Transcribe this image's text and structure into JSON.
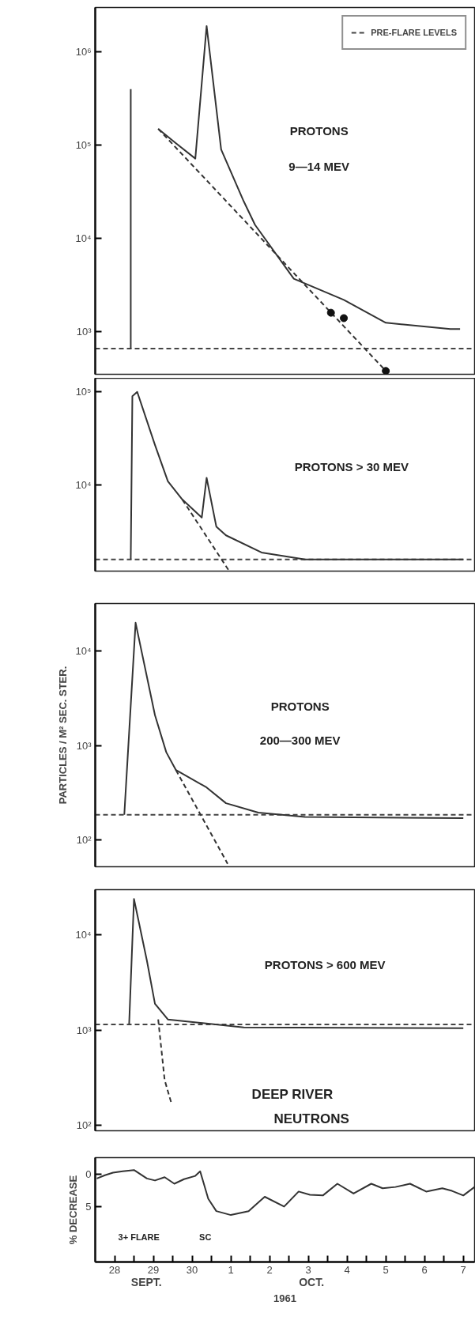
{
  "chart_data": [
    {
      "type": "line",
      "annotations": [
        "PROTONS",
        "9—14 MEV"
      ],
      "xlim": [
        "1961-09-28T00:00",
        "1961-10-07T19:00"
      ],
      "ylim": [
        350,
        3000000
      ],
      "log": true,
      "tick_labels": "y",
      "legend": "top right",
      "yticks": [
        {
          "value": 1000,
          "label": "10³"
        },
        {
          "value": 10000,
          "label": "10⁴"
        },
        {
          "value": 100000,
          "label": "10⁵"
        },
        {
          "value": 1000000,
          "label": "10⁶"
        }
      ],
      "ref_lines": [
        {
          "axis": "y",
          "value": 660,
          "label": "PRE-FLARE LEVELS",
          "line_style": "dashed",
          "color": "#444444"
        }
      ],
      "series": [
        {
          "color": "#333333",
          "line_style": "solid",
          "x": [
            "1961-09-28T22:00",
            "1961-09-28T22:00",
            "1961-09-29T07:00",
            "1961-09-29T15:00",
            "1961-09-30T02:00",
            "1961-09-30T14:00",
            "1961-09-30T21:00",
            "1961-10-01T06:00",
            "1961-10-01T20:00",
            "1961-10-02T03:00",
            "1961-10-03T03:00",
            "1961-10-04T10:00",
            "1961-10-05T12:00",
            "1961-10-07T04:00",
            "1961-10-07T10:00"
          ],
          "values": [
            660,
            400000,
            null,
            150000,
            105000,
            72000,
            1900000,
            90000,
            25000,
            14000,
            3700,
            2200,
            1250,
            1070,
            1070
          ]
        },
        {
          "color": "#333333",
          "line_style": "dashed",
          "x": [
            "1961-09-29T15:00",
            "1961-10-05T12:00"
          ],
          "values": [
            150000,
            380
          ]
        },
        {
          "type": "scatter",
          "color": "#111111",
          "marker": "circle",
          "x": [
            "1961-10-04T02:00",
            "1961-10-04T10:00",
            "1961-10-05T12:00"
          ],
          "values": [
            1600,
            1400,
            380
          ]
        }
      ]
    },
    {
      "type": "line",
      "annotations": [
        "PROTONS  > 30 MEV"
      ],
      "xlim": [
        "1961-09-28T00:00",
        "1961-10-07T19:00"
      ],
      "ylim": [
        1200,
        140000
      ],
      "log": true,
      "tick_labels": "y",
      "yticks": [
        {
          "value": 10000,
          "label": "10⁴"
        },
        {
          "value": 100000,
          "label": "10⁵"
        }
      ],
      "ref_lines": [
        {
          "axis": "y",
          "value": 1600,
          "line_style": "dashed",
          "color": "#444444"
        }
      ],
      "series": [
        {
          "color": "#333333",
          "line_style": "solid",
          "x": [
            "1961-09-28T22:00",
            "1961-09-28T23:00",
            "1961-09-29T02:00",
            "1961-09-29T13:00",
            "1961-09-29T21:00",
            "1961-09-30T06:00",
            "1961-09-30T18:00",
            "1961-09-30T21:00",
            "1961-10-01T03:00",
            "1961-10-01T09:00",
            "1961-10-02T07:00",
            "1961-10-03T10:00",
            "1961-10-07T12:00"
          ],
          "values": [
            1600,
            90000,
            100000,
            27000,
            11000,
            7000,
            4500,
            12000,
            3600,
            2900,
            1900,
            1600,
            1600
          ]
        },
        {
          "color": "#333333",
          "line_style": "dashed",
          "x": [
            "1961-09-30T06:00",
            "1961-10-01T11:00"
          ],
          "values": [
            7000,
            1200
          ]
        }
      ]
    },
    {
      "type": "line",
      "annotations": [
        "PROTONS",
        "200—300 MEV"
      ],
      "xlim": [
        "1961-09-28T00:00",
        "1961-10-07T19:00"
      ],
      "ylim": [
        52,
        32000
      ],
      "log": true,
      "tick_labels": "y",
      "ylabel": "PARTICLES / M² SEC. STER.",
      "yticks": [
        {
          "value": 100,
          "label": "10²"
        },
        {
          "value": 1000,
          "label": "10³"
        },
        {
          "value": 10000,
          "label": "10⁴"
        }
      ],
      "ref_lines": [
        {
          "axis": "y",
          "value": 185,
          "line_style": "dashed",
          "color": "#444444"
        }
      ],
      "series": [
        {
          "color": "#333333",
          "line_style": "solid",
          "x": [
            "1961-09-28T18:00",
            "1961-09-29T01:00",
            "1961-09-29T13:00",
            "1961-09-29T20:00",
            "1961-09-30T02:00",
            "1961-09-30T21:00",
            "1961-10-01T09:00",
            "1961-10-02T05:00",
            "1961-10-03T10:00",
            "1961-10-07T12:00"
          ],
          "values": [
            185,
            20000,
            2100,
            850,
            550,
            360,
            245,
            195,
            175,
            170
          ]
        },
        {
          "color": "#333333",
          "line_style": "dashed",
          "x": [
            "1961-09-30T02:00",
            "1961-10-01T10:00"
          ],
          "values": [
            550,
            56
          ]
        }
      ]
    },
    {
      "type": "line",
      "annotations": [
        "PROTONS  > 600 MEV",
        "DEEP RIVER",
        "NEUTRONS"
      ],
      "xlim": [
        "1961-09-28T00:00",
        "1961-10-07T19:00"
      ],
      "ylim": [
        88,
        30000
      ],
      "log": true,
      "tick_labels": "y",
      "yticks": [
        {
          "value": 100,
          "label": "10²"
        },
        {
          "value": 1000,
          "label": "10³"
        },
        {
          "value": 10000,
          "label": "10⁴"
        }
      ],
      "ref_lines": [
        {
          "axis": "y",
          "value": 1150,
          "line_style": "dashed",
          "color": "#444444"
        }
      ],
      "series": [
        {
          "color": "#333333",
          "line_style": "solid",
          "x": [
            "1961-09-28T21:00",
            "1961-09-29T00:00",
            "1961-09-29T08:00",
            "1961-09-29T13:00",
            "1961-09-29T21:00",
            "1961-10-01T20:00",
            "1961-10-07T12:00"
          ],
          "values": [
            1150,
            24000,
            5400,
            1900,
            1300,
            1070,
            1050
          ]
        },
        {
          "color": "#333333",
          "line_style": "dashed",
          "x": [
            "1961-09-29T15:00",
            "1961-09-29T19:00",
            "1961-09-29T23:00"
          ],
          "values": [
            1300,
            300,
            175
          ]
        }
      ]
    },
    {
      "type": "line",
      "xlabel": "1961",
      "ylabel": "% DECREASE",
      "xlim": [
        "1961-09-28T00:00",
        "1961-10-07T19:00"
      ],
      "ylim": [
        13.5,
        -2.5
      ],
      "yticks": [
        0,
        5
      ],
      "xticks": [
        {
          "value": "1961-09-28T12:00",
          "label": "28"
        },
        {
          "value": "1961-09-29",
          "label": null
        },
        {
          "value": "1961-09-29T12:00",
          "label": "29"
        },
        {
          "value": "1961-09-30",
          "label": null
        },
        {
          "value": "1961-09-30T12:00",
          "label": "30"
        },
        {
          "value": "1961-10-01",
          "label": null
        },
        {
          "value": "1961-10-01T12:00",
          "label": "1"
        },
        {
          "value": "1961-10-02",
          "label": null
        },
        {
          "value": "1961-10-02T12:00",
          "label": "2"
        },
        {
          "value": "1961-10-03",
          "label": null
        },
        {
          "value": "1961-10-03T12:00",
          "label": "3"
        },
        {
          "value": "1961-10-04",
          "label": null
        },
        {
          "value": "1961-10-04T12:00",
          "label": "4"
        },
        {
          "value": "1961-10-05",
          "label": null
        },
        {
          "value": "1961-10-05T12:00",
          "label": "5"
        },
        {
          "value": "1961-10-06",
          "label": null
        },
        {
          "value": "1961-10-06T12:00",
          "label": "6"
        },
        {
          "value": "1961-10-07",
          "label": null
        },
        {
          "value": "1961-10-07T12:00",
          "label": "7"
        }
      ],
      "annotations": [
        "SEPT.",
        "OCT.",
        "3+ FLARE",
        "SC"
      ],
      "series": [
        {
          "color": "#333333",
          "line_style": "solid",
          "x": [
            "1961-09-28T01:00",
            "1961-09-28T06:00",
            "1961-09-28T11:00",
            "1961-09-28T17:00",
            "1961-09-29T00:00",
            "1961-09-29T08:00",
            "1961-09-29T13:00",
            "1961-09-29T19:00",
            "1961-09-30T01:00",
            "1961-09-30T07:00",
            "1961-09-30T14:00",
            "1961-09-30T17:00",
            "1961-09-30T22:00",
            "1961-10-01T03:00",
            "1961-10-01T12:00",
            "1961-10-01T23:00",
            "1961-10-02T09:00",
            "1961-10-02T21:00",
            "1961-10-03T06:00",
            "1961-10-03T13:00",
            "1961-10-03T21:00",
            "1961-10-04T06:00",
            "1961-10-04T16:00",
            "1961-10-05T03:00",
            "1961-10-05T10:00",
            "1961-10-05T18:00",
            "1961-10-06T03:00",
            "1961-10-06T13:00",
            "1961-10-06T23:00",
            "1961-10-07T05:00",
            "1961-10-07T12:00",
            "1961-10-07T19:00"
          ],
          "values": [
            0.7,
            0.2,
            -0.2,
            -0.4,
            -0.6,
            0.7,
            1.0,
            0.5,
            1.5,
            0.8,
            0.3,
            -0.4,
            3.8,
            5.7,
            6.3,
            5.7,
            3.5,
            5.0,
            2.7,
            3.2,
            3.3,
            1.5,
            3.0,
            1.5,
            2.2,
            2.0,
            1.5,
            2.7,
            2.2,
            2.6,
            3.3,
            2.0
          ]
        }
      ]
    }
  ]
}
